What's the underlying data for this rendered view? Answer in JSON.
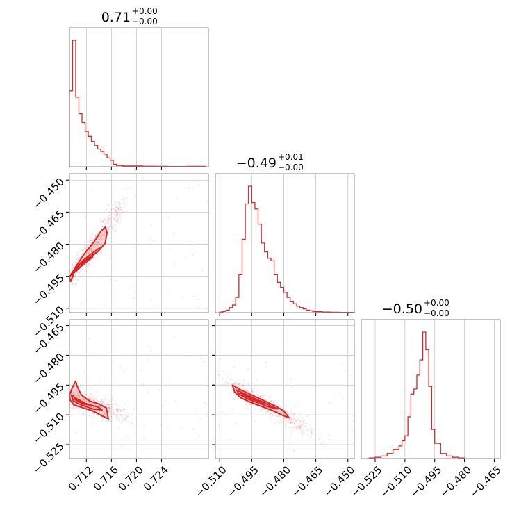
{
  "figure": {
    "titles": [
      {
        "main": "0.71",
        "plus": "+0.00",
        "minus": "−0.00"
      },
      {
        "main": "−0.49",
        "plus": "+0.01",
        "minus": "−0.00"
      },
      {
        "main": "−0.50",
        "plus": "+0.00",
        "minus": "−0.00"
      }
    ]
  },
  "chart_data": {
    "type": "corner",
    "color": "#d62728",
    "grid": true,
    "parameters": [
      {
        "range": [
          0.7093,
          0.7315
        ],
        "ticks": [
          0.712,
          0.716,
          0.72,
          0.724
        ],
        "tick_labels": [
          "0.712",
          "0.716",
          "0.720",
          "0.724"
        ]
      },
      {
        "range": [
          -0.512,
          -0.447
        ],
        "ticks": [
          -0.51,
          -0.495,
          -0.48,
          -0.465,
          -0.45
        ],
        "tick_labels": [
          "−0.510",
          "−0.495",
          "−0.480",
          "−0.465",
          "−0.450"
        ]
      },
      {
        "range": [
          -0.532,
          -0.462
        ],
        "ticks": [
          -0.525,
          -0.51,
          -0.495,
          -0.48,
          -0.465
        ],
        "tick_labels": [
          "−0.525",
          "−0.510",
          "−0.495",
          "−0.480",
          "−0.465"
        ]
      }
    ],
    "histograms": [
      {
        "param": 0,
        "bins": [
          0.7093,
          0.7098,
          0.7103,
          0.7108,
          0.7113,
          0.7118,
          0.7123,
          0.7128,
          0.7133,
          0.7138,
          0.7143,
          0.7148,
          0.7153,
          0.7158,
          0.7163,
          0.7168,
          0.7178,
          0.719,
          0.721,
          0.723,
          0.725,
          0.728,
          0.731
        ],
        "counts": [
          0.6,
          1.0,
          0.55,
          0.42,
          0.35,
          0.28,
          0.24,
          0.2,
          0.17,
          0.14,
          0.12,
          0.1,
          0.07,
          0.05,
          0.02,
          0.01,
          0.006,
          0.006,
          0.004,
          0.003,
          0.002,
          0.003
        ]
      },
      {
        "param": 1,
        "bins": [
          -0.51,
          -0.5085,
          -0.507,
          -0.5055,
          -0.504,
          -0.5025,
          -0.501,
          -0.4995,
          -0.498,
          -0.4965,
          -0.495,
          -0.4935,
          -0.492,
          -0.4905,
          -0.489,
          -0.4875,
          -0.486,
          -0.4845,
          -0.483,
          -0.4815,
          -0.48,
          -0.4785,
          -0.477,
          -0.4755,
          -0.474,
          -0.4725,
          -0.471,
          -0.4695,
          -0.468,
          -0.4665,
          -0.465,
          -0.462,
          -0.458,
          -0.454,
          -0.45,
          -0.447
        ],
        "counts": [
          0.005,
          0.01,
          0.02,
          0.04,
          0.06,
          0.12,
          0.3,
          0.58,
          0.86,
          1.0,
          0.87,
          0.82,
          0.7,
          0.55,
          0.48,
          0.43,
          0.41,
          0.3,
          0.24,
          0.2,
          0.16,
          0.12,
          0.09,
          0.07,
          0.05,
          0.04,
          0.03,
          0.02,
          0.015,
          0.01,
          0.008,
          0.005,
          0.003,
          0.002,
          0.002
        ]
      },
      {
        "param": 2,
        "bins": [
          -0.528,
          -0.525,
          -0.522,
          -0.519,
          -0.516,
          -0.513,
          -0.5115,
          -0.51,
          -0.5085,
          -0.507,
          -0.5055,
          -0.504,
          -0.5025,
          -0.501,
          -0.4995,
          -0.498,
          -0.4965,
          -0.495,
          -0.492,
          -0.489,
          -0.486,
          -0.483,
          -0.48
        ],
        "counts": [
          0.005,
          0.01,
          0.02,
          0.04,
          0.07,
          0.1,
          0.14,
          0.18,
          0.33,
          0.51,
          0.55,
          0.66,
          0.78,
          1.0,
          0.86,
          0.57,
          0.23,
          0.12,
          0.04,
          0.02,
          0.01,
          0.005
        ]
      }
    ],
    "pairs": [
      {
        "x_param": 0,
        "y_param": 1,
        "contours": [
          [
            [
              0.7093,
              -0.4955
            ],
            [
              0.71,
              -0.492
            ],
            [
              0.7115,
              -0.488
            ],
            [
              0.7128,
              -0.4855
            ],
            [
              0.714,
              -0.483
            ],
            [
              0.715,
              -0.4795
            ],
            [
              0.7153,
              -0.4745
            ],
            [
              0.715,
              -0.472
            ],
            [
              0.7143,
              -0.474
            ],
            [
              0.7132,
              -0.479
            ],
            [
              0.7118,
              -0.484
            ],
            [
              0.7103,
              -0.4905
            ],
            [
              0.7098,
              -0.495
            ],
            [
              0.7095,
              -0.4975
            ],
            [
              0.7093,
              -0.4955
            ]
          ],
          [
            [
              0.7097,
              -0.4945
            ],
            [
              0.711,
              -0.4895
            ],
            [
              0.7125,
              -0.4865
            ],
            [
              0.714,
              -0.483
            ],
            [
              0.7142,
              -0.4815
            ],
            [
              0.7128,
              -0.4845
            ],
            [
              0.7113,
              -0.488
            ],
            [
              0.71,
              -0.492
            ],
            [
              0.7097,
              -0.4945
            ]
          ],
          [
            [
              0.71,
              -0.4935
            ],
            [
              0.7115,
              -0.4895
            ],
            [
              0.713,
              -0.486
            ],
            [
              0.712,
              -0.4875
            ],
            [
              0.7105,
              -0.491
            ],
            [
              0.71,
              -0.4935
            ]
          ]
        ]
      },
      {
        "x_param": 0,
        "y_param": 2,
        "contours": [
          [
            [
              0.7093,
              -0.5
            ],
            [
              0.7098,
              -0.496
            ],
            [
              0.7103,
              -0.493
            ],
            [
              0.7105,
              -0.4955
            ],
            [
              0.7112,
              -0.5
            ],
            [
              0.7125,
              -0.503
            ],
            [
              0.714,
              -0.5045
            ],
            [
              0.7152,
              -0.5065
            ],
            [
              0.7155,
              -0.512
            ],
            [
              0.7145,
              -0.5105
            ],
            [
              0.713,
              -0.508
            ],
            [
              0.7115,
              -0.5065
            ],
            [
              0.71,
              -0.505
            ],
            [
              0.7094,
              -0.5025
            ],
            [
              0.7093,
              -0.5
            ]
          ],
          [
            [
              0.7096,
              -0.5
            ],
            [
              0.7105,
              -0.502
            ],
            [
              0.712,
              -0.5045
            ],
            [
              0.7138,
              -0.506
            ],
            [
              0.7145,
              -0.5075
            ],
            [
              0.713,
              -0.507
            ],
            [
              0.7112,
              -0.505
            ],
            [
              0.7099,
              -0.503
            ],
            [
              0.7096,
              -0.5
            ]
          ],
          [
            [
              0.71,
              -0.501
            ],
            [
              0.7112,
              -0.5035
            ],
            [
              0.7125,
              -0.505
            ],
            [
              0.7115,
              -0.5045
            ],
            [
              0.7103,
              -0.5025
            ],
            [
              0.71,
              -0.501
            ]
          ]
        ]
      },
      {
        "x_param": 1,
        "y_param": 2,
        "contours": [
          [
            [
              -0.504,
              -0.495
            ],
            [
              -0.5,
              -0.4975
            ],
            [
              -0.496,
              -0.4995
            ],
            [
              -0.492,
              -0.5015
            ],
            [
              -0.488,
              -0.5035
            ],
            [
              -0.484,
              -0.5055
            ],
            [
              -0.48,
              -0.508
            ],
            [
              -0.4775,
              -0.5115
            ],
            [
              -0.481,
              -0.51
            ],
            [
              -0.486,
              -0.5075
            ],
            [
              -0.491,
              -0.5055
            ],
            [
              -0.496,
              -0.5035
            ],
            [
              -0.5,
              -0.5015
            ],
            [
              -0.503,
              -0.4985
            ],
            [
              -0.504,
              -0.495
            ]
          ],
          [
            [
              -0.502,
              -0.4975
            ],
            [
              -0.498,
              -0.4995
            ],
            [
              -0.494,
              -0.5015
            ],
            [
              -0.49,
              -0.5035
            ],
            [
              -0.486,
              -0.5055
            ],
            [
              -0.483,
              -0.507
            ],
            [
              -0.487,
              -0.506
            ],
            [
              -0.492,
              -0.504
            ],
            [
              -0.497,
              -0.502
            ],
            [
              -0.501,
              -0.4995
            ],
            [
              -0.502,
              -0.4975
            ]
          ],
          [
            [
              -0.5,
              -0.499
            ],
            [
              -0.496,
              -0.501
            ],
            [
              -0.492,
              -0.503
            ],
            [
              -0.488,
              -0.5045
            ],
            [
              -0.49,
              -0.504
            ],
            [
              -0.495,
              -0.502
            ],
            [
              -0.499,
              -0.5
            ],
            [
              -0.5,
              -0.499
            ]
          ]
        ]
      }
    ]
  }
}
